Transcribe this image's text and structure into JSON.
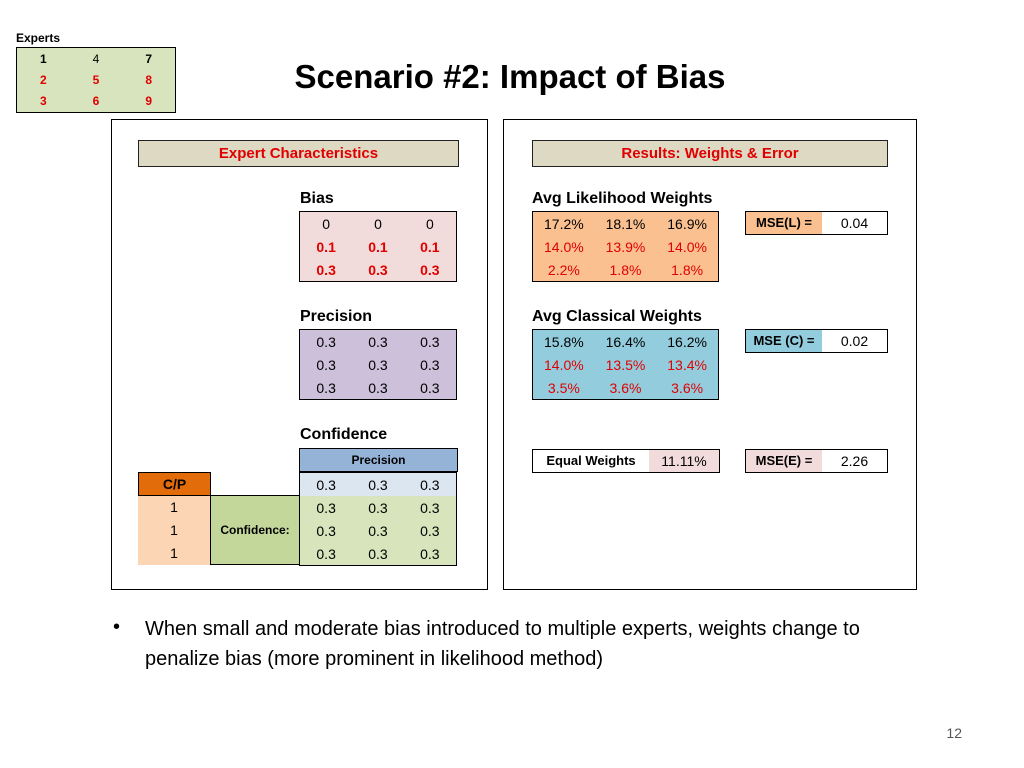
{
  "experts": {
    "label": "Experts",
    "rows": [
      [
        "1",
        "4",
        "7"
      ],
      [
        "2",
        "5",
        "8"
      ],
      [
        "3",
        "6",
        "9"
      ]
    ]
  },
  "title": "Scenario #2: Impact of Bias",
  "left": {
    "header": "Expert Characteristics",
    "bias": {
      "label": "Bias",
      "rows": [
        [
          "0",
          "0",
          "0"
        ],
        [
          "0.1",
          "0.1",
          "0.1"
        ],
        [
          "0.3",
          "0.3",
          "0.3"
        ]
      ]
    },
    "precision": {
      "label": "Precision",
      "rows": [
        [
          "0.3",
          "0.3",
          "0.3"
        ],
        [
          "0.3",
          "0.3",
          "0.3"
        ],
        [
          "0.3",
          "0.3",
          "0.3"
        ]
      ]
    },
    "confidence": {
      "label": "Confidence",
      "precision_header": "Precision",
      "cp_label": "C/P",
      "confidence_label": "Confidence:",
      "cp_values": [
        "1",
        "1",
        "1"
      ],
      "rows": [
        [
          "0.3",
          "0.3",
          "0.3"
        ],
        [
          "0.3",
          "0.3",
          "0.3"
        ],
        [
          "0.3",
          "0.3",
          "0.3"
        ],
        [
          "0.3",
          "0.3",
          "0.3"
        ]
      ]
    }
  },
  "right": {
    "header": "Results: Weights & Error",
    "likelihood": {
      "label": "Avg Likelihood Weights",
      "rows": [
        [
          "17.2%",
          "18.1%",
          "16.9%"
        ],
        [
          "14.0%",
          "13.9%",
          "14.0%"
        ],
        [
          "2.2%",
          "1.8%",
          "1.8%"
        ]
      ],
      "mse_label": "MSE(L) =",
      "mse_value": "0.04"
    },
    "classical": {
      "label": "Avg Classical Weights",
      "rows": [
        [
          "15.8%",
          "16.4%",
          "16.2%"
        ],
        [
          "14.0%",
          "13.5%",
          "13.4%"
        ],
        [
          "3.5%",
          "3.6%",
          "3.6%"
        ]
      ],
      "mse_label": "MSE (C) =",
      "mse_value": "0.02"
    },
    "equal": {
      "label": "Equal Weights",
      "value": "11.11%",
      "mse_label": "MSE(E) =",
      "mse_value": "2.26"
    }
  },
  "bullet": "When small and moderate bias introduced to multiple experts, weights change to penalize bias (more prominent in likelihood method)",
  "page_number": "12",
  "colors": {
    "red_text": "#e00000",
    "header_fill": "#ddd9c3",
    "bias_fill": "#f2dcdb",
    "precision_fill": "#ccc0da",
    "likelihood_fill": "#fac090",
    "classical_fill": "#93cddd",
    "experts_fill": "#d7e4bd",
    "cp_fill": "#e26b0a"
  }
}
